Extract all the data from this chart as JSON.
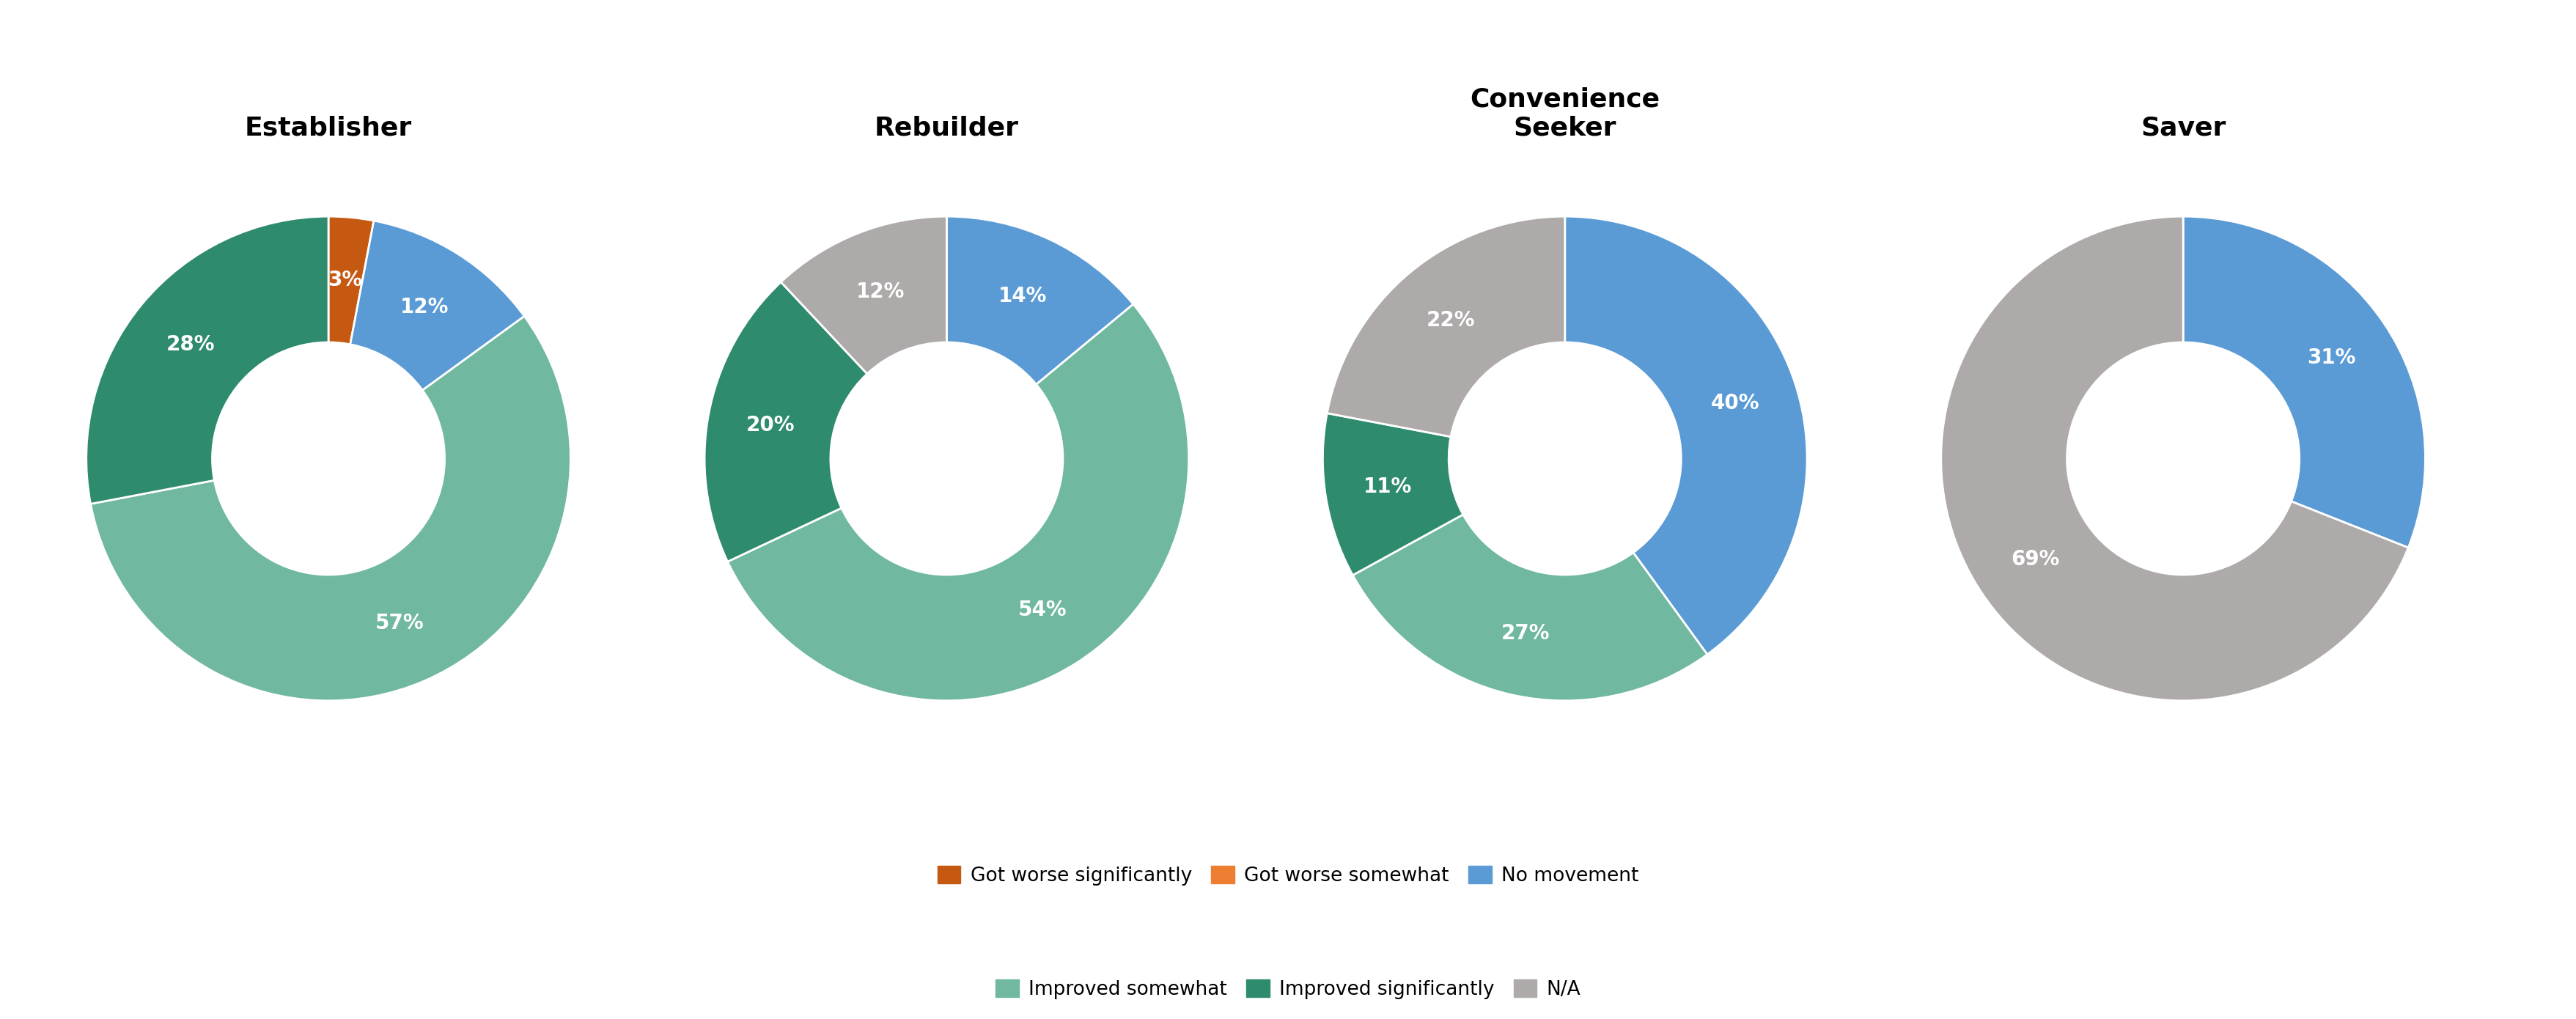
{
  "charts": [
    {
      "title": "Establisher",
      "title_multiline": false,
      "values": [
        3,
        12,
        57,
        28
      ],
      "labels": [
        "3%",
        "12%",
        "57%",
        "28%"
      ],
      "colors": [
        "#C65911",
        "#5B9BD5",
        "#70B8A0",
        "#2E8B6E"
      ],
      "startangle": 90
    },
    {
      "title": "Rebuilder",
      "title_multiline": false,
      "values": [
        14,
        54,
        20,
        12
      ],
      "labels": [
        "14%",
        "54%",
        "20%",
        "12%"
      ],
      "colors": [
        "#5B9BD5",
        "#70B8A0",
        "#2E8B6E",
        "#AEAAAA"
      ],
      "startangle": 90
    },
    {
      "title": "Convenience\nSeeker",
      "title_multiline": true,
      "values": [
        40,
        27,
        11,
        22
      ],
      "labels": [
        "40%",
        "27%",
        "11%",
        "22%"
      ],
      "colors": [
        "#5B9BD5",
        "#70B8A0",
        "#2E8B6E",
        "#AEAAAA"
      ],
      "startangle": 90
    },
    {
      "title": "Saver",
      "title_multiline": false,
      "values": [
        31,
        69
      ],
      "labels": [
        "31%",
        "69%"
      ],
      "colors": [
        "#5B9BD5",
        "#AEAAAA"
      ],
      "startangle": 90
    }
  ],
  "legend_items": [
    {
      "label": "Got worse significantly",
      "color": "#C65911"
    },
    {
      "label": "Got worse somewhat",
      "color": "#ED7D31"
    },
    {
      "label": "No movement",
      "color": "#5B9BD5"
    },
    {
      "label": "Improved somewhat",
      "color": "#70B8A0"
    },
    {
      "label": "Improved significantly",
      "color": "#2E8B6E"
    },
    {
      "label": "N/A",
      "color": "#AEAAAA"
    }
  ],
  "background_color": "#FFFFFF",
  "title_fontsize": 26,
  "label_fontsize": 20,
  "legend_fontsize": 19,
  "wedge_edge_color": "#FFFFFF",
  "wedge_linewidth": 2,
  "donut_ratio": 0.52
}
